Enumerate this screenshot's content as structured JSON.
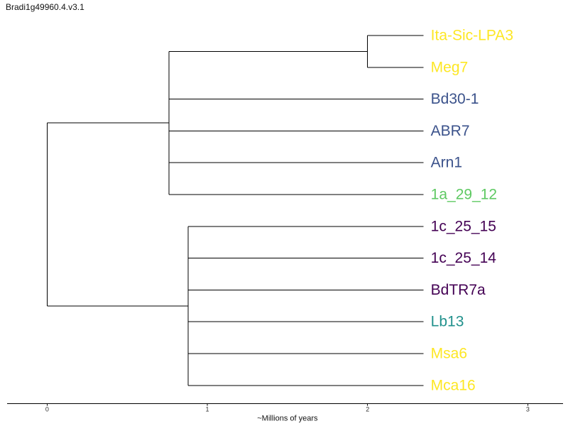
{
  "title": "Bradi1g49960.4.v3.1",
  "colors": {
    "branch": "#000000",
    "axis": "#000000"
  },
  "axis": {
    "label": "~Millions of years",
    "ticks": [
      0,
      1,
      2,
      3
    ],
    "range": [
      -0.25,
      3.22
    ]
  },
  "tree": {
    "root": {
      "age": 0,
      "children": [
        {
          "age": 0.76,
          "children": [
            {
              "age": 2.0,
              "children": [
                {
                  "leaf": "Ita-Sic-LPA3",
                  "color": "#fde725"
                },
                {
                  "leaf": "Meg7",
                  "color": "#fde725"
                }
              ]
            },
            {
              "leaf": "Bd30-1",
              "color": "#3b528b"
            },
            {
              "leaf": "ABR7",
              "color": "#3b528b"
            },
            {
              "leaf": "Arn1",
              "color": "#3b528b"
            },
            {
              "leaf": "1a_29_12",
              "color": "#5ec962"
            }
          ]
        },
        {
          "age": 0.88,
          "children": [
            {
              "leaf": "1c_25_15",
              "color": "#440154"
            },
            {
              "leaf": "1c_25_14",
              "color": "#440154"
            },
            {
              "leaf": "BdTR7a",
              "color": "#440154"
            },
            {
              "leaf": "Lb13",
              "color": "#21918c"
            },
            {
              "leaf": "Msa6",
              "color": "#fde725"
            },
            {
              "leaf": "Mca16",
              "color": "#fde725"
            }
          ]
        }
      ]
    },
    "leaf_age": 2.35
  }
}
